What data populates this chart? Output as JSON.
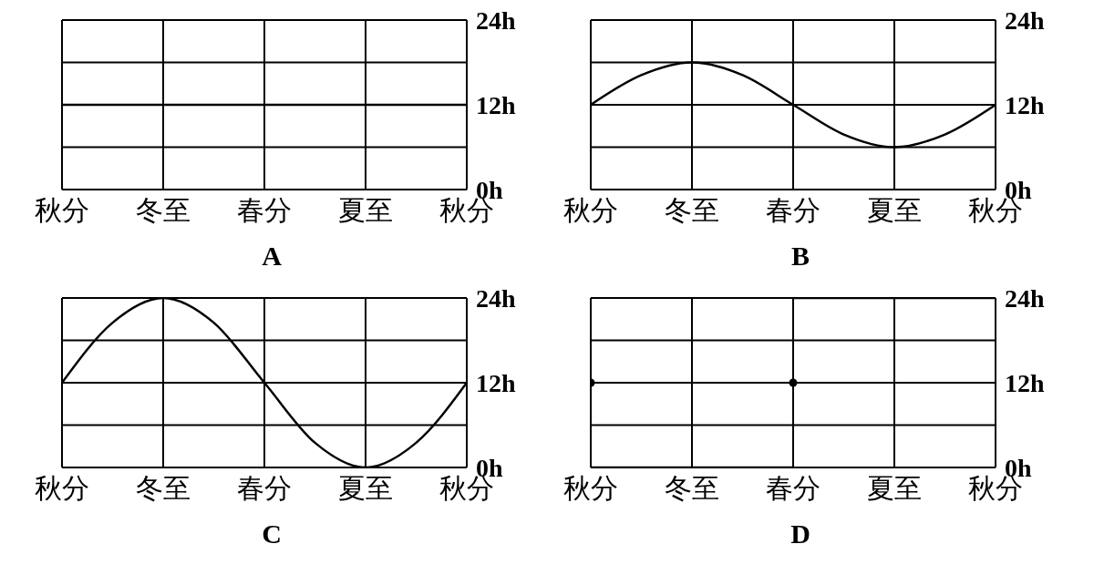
{
  "chart_data": [
    {
      "type": "line",
      "title": "A",
      "categories": [
        "秋分",
        null,
        "冬至",
        null,
        "春分",
        null,
        "夏至",
        null,
        "秋分"
      ],
      "ylim": [
        0,
        24
      ],
      "yticks": [
        {
          "value": 0,
          "label": "0h"
        },
        {
          "value": 6,
          "label": null
        },
        {
          "value": 12,
          "label": "12h"
        },
        {
          "value": 18,
          "label": null
        },
        {
          "value": 24,
          "label": "24h"
        }
      ],
      "grid": true,
      "marker": "none",
      "series": [
        {
          "color": "#000000",
          "values": [
            12,
            12,
            12,
            12,
            12,
            12,
            12,
            12,
            12
          ]
        }
      ]
    },
    {
      "type": "line",
      "title": "B",
      "categories": [
        "秋分",
        null,
        "冬至",
        null,
        "春分",
        null,
        "夏至",
        null,
        "秋分"
      ],
      "ylim": [
        0,
        24
      ],
      "yticks": [
        {
          "value": 0,
          "label": "0h"
        },
        {
          "value": 6,
          "label": null
        },
        {
          "value": 12,
          "label": "12h"
        },
        {
          "value": 18,
          "label": null
        },
        {
          "value": 24,
          "label": "24h"
        }
      ],
      "grid": true,
      "marker": "none",
      "series": [
        {
          "color": "#000000",
          "values": [
            12,
            16.2,
            18,
            16.2,
            12,
            7.8,
            6,
            7.8,
            12
          ]
        }
      ]
    },
    {
      "type": "line",
      "title": "C",
      "categories": [
        "秋分",
        null,
        "冬至",
        null,
        "春分",
        null,
        "夏至",
        null,
        "秋分"
      ],
      "ylim": [
        0,
        24
      ],
      "yticks": [
        {
          "value": 0,
          "label": "0h"
        },
        {
          "value": 6,
          "label": null
        },
        {
          "value": 12,
          "label": "12h"
        },
        {
          "value": 18,
          "label": null
        },
        {
          "value": 24,
          "label": "24h"
        }
      ],
      "grid": true,
      "marker": "none",
      "series": [
        {
          "color": "#000000",
          "values": [
            12,
            20.5,
            24,
            20.5,
            12,
            3.5,
            0,
            3.5,
            12
          ]
        }
      ]
    },
    {
      "type": "line",
      "title": "D",
      "categories": [
        "秋分",
        null,
        "冬至",
        null,
        "春分",
        null,
        "夏至",
        null,
        "秋分"
      ],
      "ylim": [
        0,
        24
      ],
      "yticks": [
        {
          "value": 0,
          "label": "0h"
        },
        {
          "value": 6,
          "label": null
        },
        {
          "value": 12,
          "label": "12h"
        },
        {
          "value": 18,
          "label": null
        },
        {
          "value": 24,
          "label": "24h"
        }
      ],
      "grid": true,
      "marker": "none",
      "series": [
        {
          "color": "#000000",
          "values": [
            0,
            0,
            0,
            0,
            0,
            null,
            null,
            null,
            null
          ]
        },
        {
          "color": "#000000",
          "values": [
            null,
            null,
            null,
            null,
            24,
            24,
            24,
            24,
            24
          ]
        },
        {
          "type": "scatter",
          "marker": "circle",
          "color": "#000000",
          "values": [
            12,
            null,
            null,
            null,
            12,
            null,
            null,
            null,
            null
          ]
        }
      ]
    }
  ]
}
